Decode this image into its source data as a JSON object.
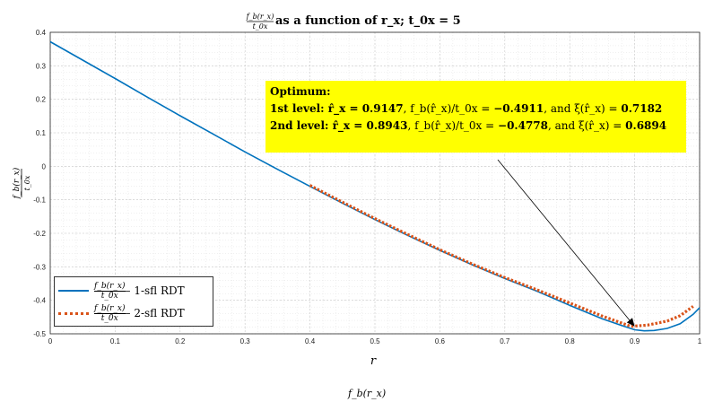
{
  "chart_data": {
    "type": "line",
    "title": "f_b(r_x)/t_0x as a function of r_x; t_0x = 5",
    "xlabel": "r",
    "ylabel": "f_b(r_x)/t_0x",
    "xlim": [
      0,
      1
    ],
    "ylim": [
      -0.5,
      0.4
    ],
    "xticks": [
      0,
      0.1,
      0.2,
      0.3,
      0.4,
      0.5,
      0.6,
      0.7,
      0.8,
      0.9,
      1
    ],
    "yticks": [
      -0.5,
      -0.4,
      -0.3,
      -0.2,
      -0.1,
      0,
      0.1,
      0.2,
      0.3,
      0.4
    ],
    "grid": true,
    "legend_position": "bottom-left",
    "series": [
      {
        "name": "f_b(r_x)/t_0x – 1-sfl RDT",
        "color": "#0072bd",
        "style": "solid",
        "x": [
          0,
          0.05,
          0.1,
          0.15,
          0.2,
          0.25,
          0.3,
          0.35,
          0.4,
          0.45,
          0.5,
          0.55,
          0.6,
          0.65,
          0.7,
          0.75,
          0.8,
          0.85,
          0.88,
          0.9,
          0.9147,
          0.93,
          0.95,
          0.97,
          0.99,
          1.0
        ],
        "y": [
          0.372,
          0.317,
          0.262,
          0.206,
          0.151,
          0.097,
          0.043,
          -0.009,
          -0.06,
          -0.11,
          -0.159,
          -0.206,
          -0.251,
          -0.294,
          -0.335,
          -0.373,
          -0.415,
          -0.455,
          -0.475,
          -0.488,
          -0.4911,
          -0.49,
          -0.484,
          -0.47,
          -0.442,
          -0.422
        ]
      },
      {
        "name": "f_b(r_x)/t_0x – 2-sfl RDT",
        "color": "#d95319",
        "style": "dotted",
        "x": [
          0.4,
          0.45,
          0.5,
          0.55,
          0.6,
          0.65,
          0.7,
          0.75,
          0.8,
          0.85,
          0.8943,
          0.92,
          0.95,
          0.97,
          0.99
        ],
        "y": [
          -0.057,
          -0.107,
          -0.156,
          -0.203,
          -0.249,
          -0.292,
          -0.332,
          -0.369,
          -0.408,
          -0.447,
          -0.4778,
          -0.474,
          -0.462,
          -0.446,
          -0.418
        ]
      }
    ],
    "annotations": {
      "heading": "Optimum:",
      "line1": "1st level: r̂_x = 0.9147, f_b(r̂_x)/t_0x = −0.4911, and ξ(r̂_x) = 0.7182",
      "line2": "2nd level: r̂_x = 0.8943, f_b(r̂_x)/t_0x = −0.4778, and ξ(r̂_x) = 0.6894",
      "arrow_target": [
        0.9,
        -0.478
      ]
    }
  },
  "title": {
    "frac_num": "f_b(r_x)",
    "frac_den": "t_0x",
    "rest": " as a function of r_x; t_0x = 5"
  },
  "axes": {
    "xlabel": "r",
    "ylabel_num": "f_b(r_x)",
    "ylabel_den": "t_0x"
  },
  "annotation_box": {
    "heading": "Optimum:",
    "l1_prefix": "1st level: r̂_x = ",
    "l1_rx": "0.9147",
    "l1_mid": ", f_b(r̂_x)/t_0x = ",
    "l1_f": "−0.4911",
    "l1_and": ", and ξ(r̂_x) = ",
    "l1_xi": "0.7182",
    "l2_prefix": "2nd level: r̂_x = ",
    "l2_rx": "0.8943",
    "l2_mid": ", f_b(r̂_x)/t_0x = ",
    "l2_f": "−0.4778",
    "l2_and": ", and ξ(r̂_x) = ",
    "l2_xi": "0.6894"
  },
  "legend": {
    "s1_num": "f_b(r_x)",
    "s1_den": "t_0x",
    "s1_suffix": " – 1-sfl RDT",
    "s2_num": "f_b(r_x)",
    "s2_den": "t_0x",
    "s2_suffix": " – 2-sfl RDT"
  },
  "bottom_fragment": "f_b(r_x)"
}
